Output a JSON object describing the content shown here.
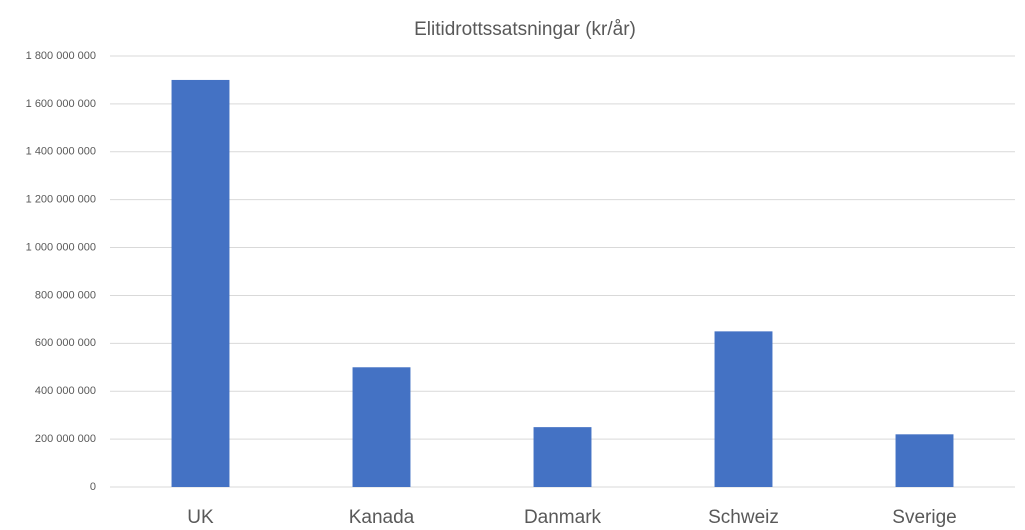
{
  "chart_data": {
    "type": "bar",
    "title": "Elitidrottssatsningar (kr/år)",
    "categories": [
      "UK",
      "Kanada",
      "Danmark",
      "Schweiz",
      "Sverige"
    ],
    "values": [
      1700000000,
      500000000,
      250000000,
      650000000,
      220000000
    ],
    "color": "#4472c4",
    "ylim": [
      0,
      1800000000
    ],
    "yticks": [
      0,
      {
        "value": 200000000,
        "label": "200 000 000"
      },
      {
        "value": 400000000,
        "label": "400 000 000"
      },
      {
        "value": 600000000,
        "label": "600 000 000"
      },
      {
        "value": 800000000,
        "label": "800 000 000"
      },
      {
        "value": 1000000000,
        "label": "1 000 000 000"
      },
      {
        "value": 1200000000,
        "label": "1 200 000 000"
      },
      {
        "value": 1400000000,
        "label": "1 400 000 000"
      },
      {
        "value": 1600000000,
        "label": "1 600 000 000"
      },
      {
        "value": 1800000000,
        "label": "1 800 000 000"
      }
    ],
    "grid": true
  }
}
